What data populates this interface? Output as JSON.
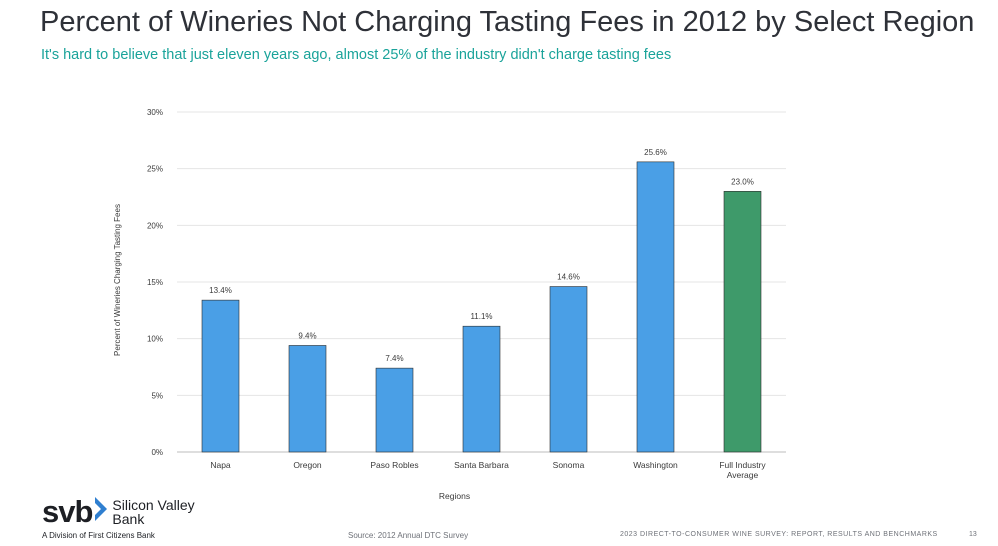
{
  "slide": {
    "title": "Percent of Wineries Not Charging Tasting Fees in 2012 by Select Region",
    "subtitle": "It's hard to believe that just eleven years ago, almost 25% of the industry didn't charge tasting fees",
    "source": "Source: 2012 Annual DTC Survey",
    "footer": "2023 DIRECT-TO-CONSUMER WINE SURVEY: REPORT, RESULTS AND BENCHMARKS",
    "page_number": "13"
  },
  "logo": {
    "mark": "svb",
    "brand_line1": "Silicon Valley",
    "brand_line2": "Bank",
    "division": "A Division of First Citizens Bank",
    "icon": "svb-chevron-icon"
  },
  "colors": {
    "title": "#2e3138",
    "subtitle": "#1aa39a",
    "bar_region": "#4a9fe6",
    "bar_average": "#3e9a6a",
    "grid": "#e4e4e4",
    "axis_text": "#3a3a3a"
  },
  "chart_data": {
    "type": "bar",
    "categories": [
      "Napa",
      "Oregon",
      "Paso Robles",
      "Santa Barbara",
      "Sonoma",
      "Washington",
      "Full Industry Average"
    ],
    "category_lines": [
      [
        "Napa"
      ],
      [
        "Oregon"
      ],
      [
        "Paso Robles"
      ],
      [
        "Santa Barbara"
      ],
      [
        "Sonoma"
      ],
      [
        "Washington"
      ],
      [
        "Full Industry",
        "Average"
      ]
    ],
    "values": [
      13.4,
      9.4,
      7.4,
      11.1,
      14.6,
      25.6,
      23.0
    ],
    "value_labels": [
      "13.4%",
      "9.4%",
      "7.4%",
      "11.1%",
      "14.6%",
      "25.6%",
      "23.0%"
    ],
    "bar_colors": [
      "#4a9fe6",
      "#4a9fe6",
      "#4a9fe6",
      "#4a9fe6",
      "#4a9fe6",
      "#4a9fe6",
      "#3e9a6a"
    ],
    "xlabel": "Regions",
    "ylabel": "Percent of Wineries Charging Tasting Fees",
    "ylim": [
      0,
      30
    ],
    "yticks": [
      0,
      5,
      10,
      15,
      20,
      25,
      30
    ],
    "ytick_labels": [
      "0%",
      "5%",
      "10%",
      "15%",
      "20%",
      "25%",
      "30%"
    ],
    "grid": true,
    "legend": "none"
  }
}
